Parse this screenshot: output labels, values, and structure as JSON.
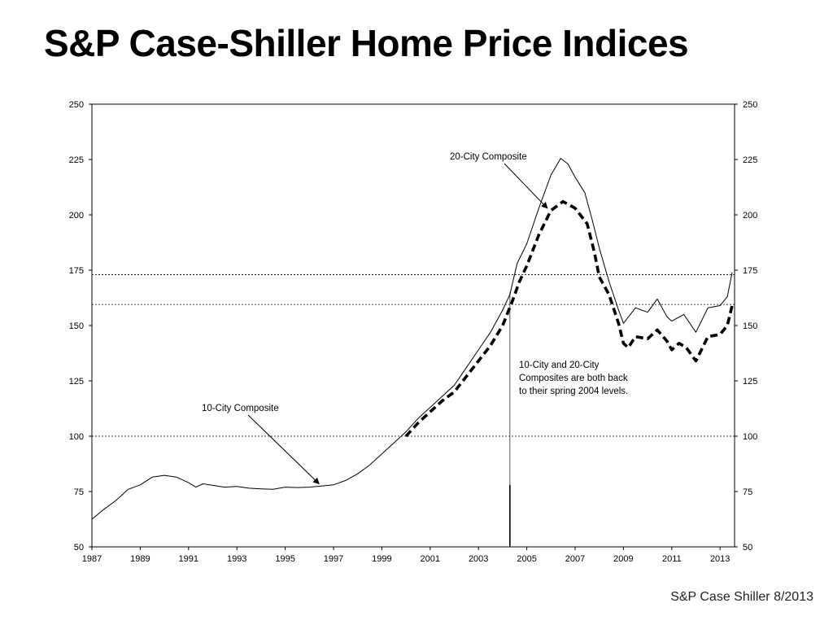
{
  "title": "S&P Case-Shiller Home Price Indices",
  "source_note": "S&P Case Shiller 8/2013",
  "chart_data": {
    "type": "line",
    "ylim": [
      50,
      250
    ],
    "xlim": [
      1987,
      2013.6
    ],
    "y_ticks": [
      "50",
      "75",
      "100",
      "125",
      "150",
      "175",
      "200",
      "225",
      "250"
    ],
    "x_ticks": [
      "1987",
      "1989",
      "1991",
      "1993",
      "1995",
      "1997",
      "1999",
      "2001",
      "2003",
      "2005",
      "2007",
      "2009",
      "2011",
      "2013"
    ],
    "reference_lines": [
      100,
      159.5,
      173
    ],
    "vertical_marker": 2004.3,
    "grid": false,
    "annotations": {
      "twenty_city": "20-City Composite",
      "ten_city": "10-City Composite",
      "note_lines": [
        "10-City and 20-City",
        "Composites are both back",
        "to their spring 2004 levels."
      ]
    },
    "series": [
      {
        "style": "solid",
        "points": [
          [
            1987,
            62.5
          ],
          [
            1987.5,
            67
          ],
          [
            1988,
            71
          ],
          [
            1988.5,
            76
          ],
          [
            1989,
            78
          ],
          [
            1989.5,
            81.5
          ],
          [
            1990,
            82.3
          ],
          [
            1990.5,
            81.5
          ],
          [
            1991,
            79
          ],
          [
            1991.3,
            77
          ],
          [
            1991.6,
            78.5
          ],
          [
            1992,
            77.8
          ],
          [
            1992.5,
            77
          ],
          [
            1993,
            77.3
          ],
          [
            1993.5,
            76.5
          ],
          [
            1994,
            76.2
          ],
          [
            1994.5,
            76
          ],
          [
            1995,
            77
          ],
          [
            1995.5,
            76.8
          ],
          [
            1996,
            77
          ],
          [
            1996.5,
            77.5
          ],
          [
            1997,
            78
          ],
          [
            1997.5,
            80
          ],
          [
            1998,
            83
          ],
          [
            1998.5,
            87
          ],
          [
            1999,
            92
          ],
          [
            1999.5,
            97
          ],
          [
            2000,
            102
          ],
          [
            2000.5,
            108
          ],
          [
            2001,
            113
          ],
          [
            2001.5,
            118
          ],
          [
            2002,
            123
          ],
          [
            2002.5,
            131
          ],
          [
            2003,
            139
          ],
          [
            2003.5,
            147
          ],
          [
            2004,
            157
          ],
          [
            2004.3,
            164
          ],
          [
            2004.6,
            178
          ],
          [
            2005,
            187
          ],
          [
            2005.5,
            203
          ],
          [
            2006,
            218
          ],
          [
            2006.4,
            225.5
          ],
          [
            2006.7,
            223
          ],
          [
            2007,
            217
          ],
          [
            2007.4,
            210
          ],
          [
            2007.7,
            198
          ],
          [
            2008,
            185
          ],
          [
            2008.4,
            170
          ],
          [
            2008.8,
            157
          ],
          [
            2009,
            151
          ],
          [
            2009.5,
            158
          ],
          [
            2010,
            156
          ],
          [
            2010.4,
            162
          ],
          [
            2010.8,
            154
          ],
          [
            2011,
            152
          ],
          [
            2011.5,
            155
          ],
          [
            2012,
            147
          ],
          [
            2012.5,
            158
          ],
          [
            2013,
            159
          ],
          [
            2013.3,
            163
          ],
          [
            2013.5,
            174
          ]
        ]
      },
      {
        "style": "dashed",
        "points": [
          [
            2000,
            100
          ],
          [
            2000.5,
            106
          ],
          [
            2001,
            111
          ],
          [
            2001.5,
            116
          ],
          [
            2002,
            120
          ],
          [
            2002.5,
            127
          ],
          [
            2003,
            134
          ],
          [
            2003.5,
            141
          ],
          [
            2004,
            150
          ],
          [
            2004.4,
            161
          ],
          [
            2004.7,
            170
          ],
          [
            2005,
            177
          ],
          [
            2005.5,
            191
          ],
          [
            2006,
            202
          ],
          [
            2006.5,
            206
          ],
          [
            2007,
            203
          ],
          [
            2007.5,
            196
          ],
          [
            2007.8,
            183
          ],
          [
            2008,
            172
          ],
          [
            2008.4,
            164
          ],
          [
            2008.8,
            151
          ],
          [
            2009,
            142
          ],
          [
            2009.2,
            140
          ],
          [
            2009.5,
            145
          ],
          [
            2010,
            144
          ],
          [
            2010.4,
            148
          ],
          [
            2010.8,
            143
          ],
          [
            2011,
            139
          ],
          [
            2011.3,
            142
          ],
          [
            2011.6,
            140
          ],
          [
            2012,
            134
          ],
          [
            2012.5,
            145
          ],
          [
            2013,
            146
          ],
          [
            2013.3,
            150
          ],
          [
            2013.5,
            159
          ]
        ]
      }
    ]
  }
}
